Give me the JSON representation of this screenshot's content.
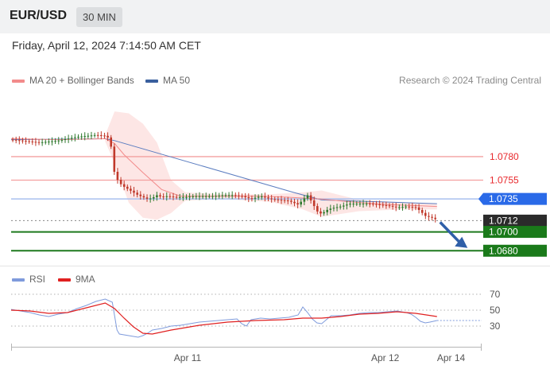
{
  "header": {
    "symbol": "EUR/USD",
    "timeframe": "30 MIN",
    "datetime": "Friday, April 12, 2024 7:14:50 AM CET"
  },
  "legend": {
    "ma20_label": "MA 20 + Bollinger Bands",
    "ma50_label": "MA 50",
    "copyright": "Research © 2024 Trading Central"
  },
  "rsi_legend": {
    "rsi_label": "RSI",
    "ma_label": "9MA"
  },
  "colors": {
    "ma20": "#f28b8b",
    "ma50": "#5b7dc0",
    "rsi": "#7f9bdc",
    "rsi_ma": "#e02020",
    "resistance": "#e8282c",
    "support": "#1f7a1f",
    "pivot": "#2a6ae8",
    "price_tag": "#2b2b2b",
    "bands": "#fde2e0"
  },
  "chart_data": [
    {
      "type": "line",
      "name": "price",
      "ylim": [
        1.0665,
        1.0845
      ],
      "x_range": [
        0,
        100
      ],
      "x_ticks": [
        {
          "x": 37.5,
          "label": "Apr 11"
        },
        {
          "x": 79.5,
          "label": "Apr 12"
        },
        {
          "x": 93.5,
          "label": "Apr 14"
        }
      ],
      "price_series": [
        [
          0,
          1.0798
        ],
        [
          2,
          1.0797
        ],
        [
          4,
          1.0796
        ],
        [
          6,
          1.0795
        ],
        [
          8,
          1.0796
        ],
        [
          10,
          1.0797
        ],
        [
          12,
          1.0799
        ],
        [
          14,
          1.0801
        ],
        [
          16,
          1.0802
        ],
        [
          18,
          1.0803
        ],
        [
          20,
          1.0802
        ],
        [
          21,
          1.0799
        ],
        [
          21.5,
          1.0781
        ],
        [
          22,
          1.0761
        ],
        [
          23,
          1.0752
        ],
        [
          24,
          1.0748
        ],
        [
          25,
          1.0745
        ],
        [
          26,
          1.0742
        ],
        [
          27,
          1.0739
        ],
        [
          28,
          1.0737
        ],
        [
          29,
          1.0735
        ],
        [
          30,
          1.0736
        ],
        [
          31,
          1.0739
        ],
        [
          32,
          1.0737
        ],
        [
          33,
          1.0738
        ],
        [
          35,
          1.0737
        ],
        [
          37,
          1.0737
        ],
        [
          39,
          1.0738
        ],
        [
          41,
          1.0738
        ],
        [
          43,
          1.0738
        ],
        [
          45,
          1.0739
        ],
        [
          47,
          1.0739
        ],
        [
          49,
          1.0738
        ],
        [
          51,
          1.0735
        ],
        [
          53,
          1.0738
        ],
        [
          55,
          1.0735
        ],
        [
          57,
          1.0734
        ],
        [
          59,
          1.0733
        ],
        [
          61,
          1.0729
        ],
        [
          63,
          1.0739
        ],
        [
          64,
          1.0731
        ],
        [
          65,
          1.0722
        ],
        [
          66,
          1.0719
        ],
        [
          67,
          1.0723
        ],
        [
          68,
          1.0725
        ],
        [
          70,
          1.0727
        ],
        [
          72,
          1.073
        ],
        [
          74,
          1.073
        ],
        [
          76,
          1.073
        ],
        [
          78,
          1.0729
        ],
        [
          80,
          1.0728
        ],
        [
          82,
          1.0726
        ],
        [
          84,
          1.0727
        ],
        [
          86,
          1.0726
        ],
        [
          87,
          1.0722
        ],
        [
          88,
          1.0717
        ],
        [
          89.5,
          1.0715
        ],
        [
          90.5,
          1.0713
        ]
      ],
      "ma20": [
        [
          0,
          1.0799
        ],
        [
          10,
          1.0798
        ],
        [
          20,
          1.0799
        ],
        [
          22,
          1.0794
        ],
        [
          24,
          1.0782
        ],
        [
          28,
          1.0763
        ],
        [
          32,
          1.0745
        ],
        [
          36,
          1.0738
        ],
        [
          44,
          1.0738
        ],
        [
          52,
          1.0738
        ],
        [
          58,
          1.0737
        ],
        [
          62,
          1.0736
        ],
        [
          66,
          1.0735
        ],
        [
          72,
          1.0732
        ],
        [
          80,
          1.0729
        ],
        [
          86,
          1.0728
        ],
        [
          90.5,
          1.0727
        ]
      ],
      "ma50": [
        [
          0,
          1.0798
        ],
        [
          20,
          1.0799
        ],
        [
          22,
          1.0797
        ],
        [
          60,
          1.0742
        ],
        [
          66,
          1.0734
        ],
        [
          90.5,
          1.073
        ]
      ],
      "bollinger_upper": [
        [
          20,
          1.0803
        ],
        [
          22,
          1.0828
        ],
        [
          25,
          1.0826
        ],
        [
          28,
          1.0815
        ],
        [
          31,
          1.0795
        ],
        [
          34,
          1.0755
        ],
        [
          37,
          1.0742
        ],
        [
          45,
          1.074
        ],
        [
          55,
          1.074
        ],
        [
          62,
          1.0742
        ],
        [
          66,
          1.0744
        ],
        [
          74,
          1.0734
        ],
        [
          84,
          1.0731
        ],
        [
          90.5,
          1.073
        ]
      ],
      "bollinger_lower": [
        [
          20,
          1.0796
        ],
        [
          22,
          1.0773
        ],
        [
          25,
          1.0731
        ],
        [
          28,
          1.0715
        ],
        [
          31,
          1.0713
        ],
        [
          34,
          1.072
        ],
        [
          37,
          1.0733
        ],
        [
          45,
          1.0735
        ],
        [
          55,
          1.0732
        ],
        [
          62,
          1.0724
        ],
        [
          66,
          1.0716
        ],
        [
          74,
          1.0722
        ],
        [
          84,
          1.0724
        ],
        [
          90.5,
          1.0724
        ]
      ],
      "levels": [
        {
          "value": 1.078,
          "label": "1.0780",
          "kind": "resistance"
        },
        {
          "value": 1.0755,
          "label": "1.0755",
          "kind": "resistance"
        },
        {
          "value": 1.0735,
          "label": "1.0735",
          "kind": "pivot"
        },
        {
          "value": 1.0712,
          "label": "1.0712",
          "kind": "current"
        },
        {
          "value": 1.07,
          "label": "1.0700",
          "kind": "support"
        },
        {
          "value": 1.068,
          "label": "1.0680",
          "kind": "support"
        }
      ],
      "forecast_arrow": {
        "from": [
          90.5,
          1.0712
        ],
        "to": [
          97,
          1.0683
        ]
      }
    },
    {
      "type": "line",
      "name": "rsi",
      "ylim": [
        10,
        80
      ],
      "yticks": [
        30,
        50,
        70
      ],
      "rsi": [
        [
          0,
          51
        ],
        [
          2,
          49
        ],
        [
          4,
          47
        ],
        [
          6,
          44
        ],
        [
          8,
          42
        ],
        [
          10,
          45
        ],
        [
          12,
          47
        ],
        [
          14,
          52
        ],
        [
          16,
          56
        ],
        [
          18,
          61
        ],
        [
          20,
          64
        ],
        [
          21.5,
          60
        ],
        [
          22.5,
          25
        ],
        [
          23,
          20
        ],
        [
          25,
          18
        ],
        [
          27,
          16
        ],
        [
          28,
          18
        ],
        [
          29,
          21
        ],
        [
          30,
          25
        ],
        [
          32,
          27
        ],
        [
          34,
          30
        ],
        [
          36,
          31
        ],
        [
          38,
          33
        ],
        [
          40,
          35
        ],
        [
          42,
          36
        ],
        [
          44,
          37
        ],
        [
          46,
          38
        ],
        [
          48,
          39
        ],
        [
          49,
          33
        ],
        [
          50,
          30
        ],
        [
          51,
          38
        ],
        [
          53,
          40
        ],
        [
          55,
          39
        ],
        [
          57,
          40
        ],
        [
          59,
          41
        ],
        [
          61,
          44
        ],
        [
          62,
          54
        ],
        [
          63,
          47
        ],
        [
          64,
          39
        ],
        [
          65,
          34
        ],
        [
          66,
          33
        ],
        [
          67,
          38
        ],
        [
          68,
          43
        ],
        [
          70,
          43
        ],
        [
          72,
          44
        ],
        [
          74,
          46
        ],
        [
          76,
          47
        ],
        [
          78,
          47
        ],
        [
          80,
          48
        ],
        [
          82,
          49
        ],
        [
          84,
          47
        ],
        [
          85,
          45
        ],
        [
          86,
          41
        ],
        [
          87,
          36
        ],
        [
          88,
          34
        ],
        [
          89,
          35
        ],
        [
          90.5,
          37
        ]
      ],
      "rsi_ma": [
        [
          0,
          50
        ],
        [
          4,
          49
        ],
        [
          8,
          46
        ],
        [
          12,
          47
        ],
        [
          16,
          53
        ],
        [
          20,
          59
        ],
        [
          22,
          52
        ],
        [
          24,
          40
        ],
        [
          26,
          29
        ],
        [
          28,
          21
        ],
        [
          30,
          20
        ],
        [
          34,
          25
        ],
        [
          40,
          31
        ],
        [
          46,
          35
        ],
        [
          52,
          37
        ],
        [
          58,
          38
        ],
        [
          62,
          40
        ],
        [
          66,
          40
        ],
        [
          70,
          42
        ],
        [
          74,
          45
        ],
        [
          78,
          46
        ],
        [
          82,
          48
        ],
        [
          86,
          46
        ],
        [
          90.5,
          42
        ]
      ]
    }
  ]
}
